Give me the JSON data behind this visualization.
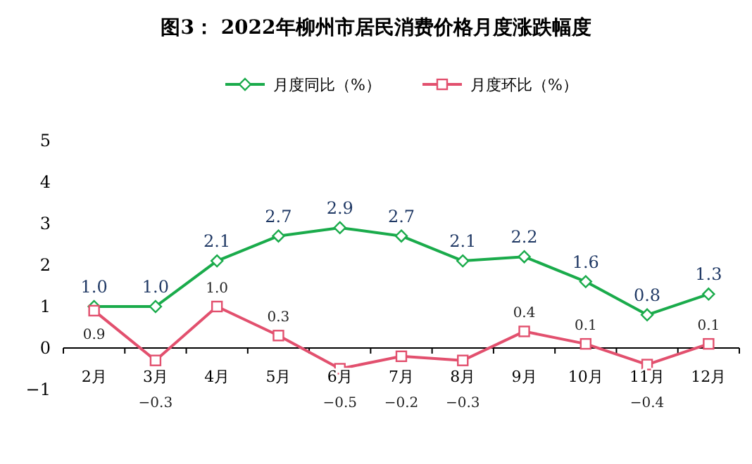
{
  "chart_data": {
    "type": "line",
    "title": "图3：  2022年柳州市居民消费价格月度涨跌幅度",
    "categories": [
      "2月",
      "3月",
      "4月",
      "5月",
      "6月",
      "7月",
      "8月",
      "9月",
      "10月",
      "11月",
      "12月"
    ],
    "series": [
      {
        "name": "月度同比（%）",
        "color": "#1aab4b",
        "marker": "diamond",
        "values": [
          1.0,
          1.0,
          2.1,
          2.7,
          2.9,
          2.7,
          2.1,
          2.2,
          1.6,
          0.8,
          1.3
        ],
        "value_labels": [
          "1.0",
          "1.0",
          "2.1",
          "2.7",
          "2.9",
          "2.7",
          "2.1",
          "2.2",
          "1.6",
          "0.8",
          "1.3"
        ]
      },
      {
        "name": "月度环比（%）",
        "color": "#e2506e",
        "marker": "square",
        "values": [
          0.9,
          -0.3,
          1.0,
          0.3,
          -0.5,
          -0.2,
          -0.3,
          0.4,
          0.1,
          -0.4,
          0.1
        ],
        "value_labels": [
          "0.9",
          "−0.3",
          "1.0",
          "0.3",
          "−0.5",
          "−0.2",
          "−0.3",
          "0.4",
          "0.1",
          "−0.4",
          "0.1"
        ]
      }
    ],
    "ylim": [
      -1,
      5
    ],
    "yticks": [
      -1,
      0,
      1,
      2,
      3,
      4,
      5
    ],
    "grid": false,
    "legend": "top"
  }
}
